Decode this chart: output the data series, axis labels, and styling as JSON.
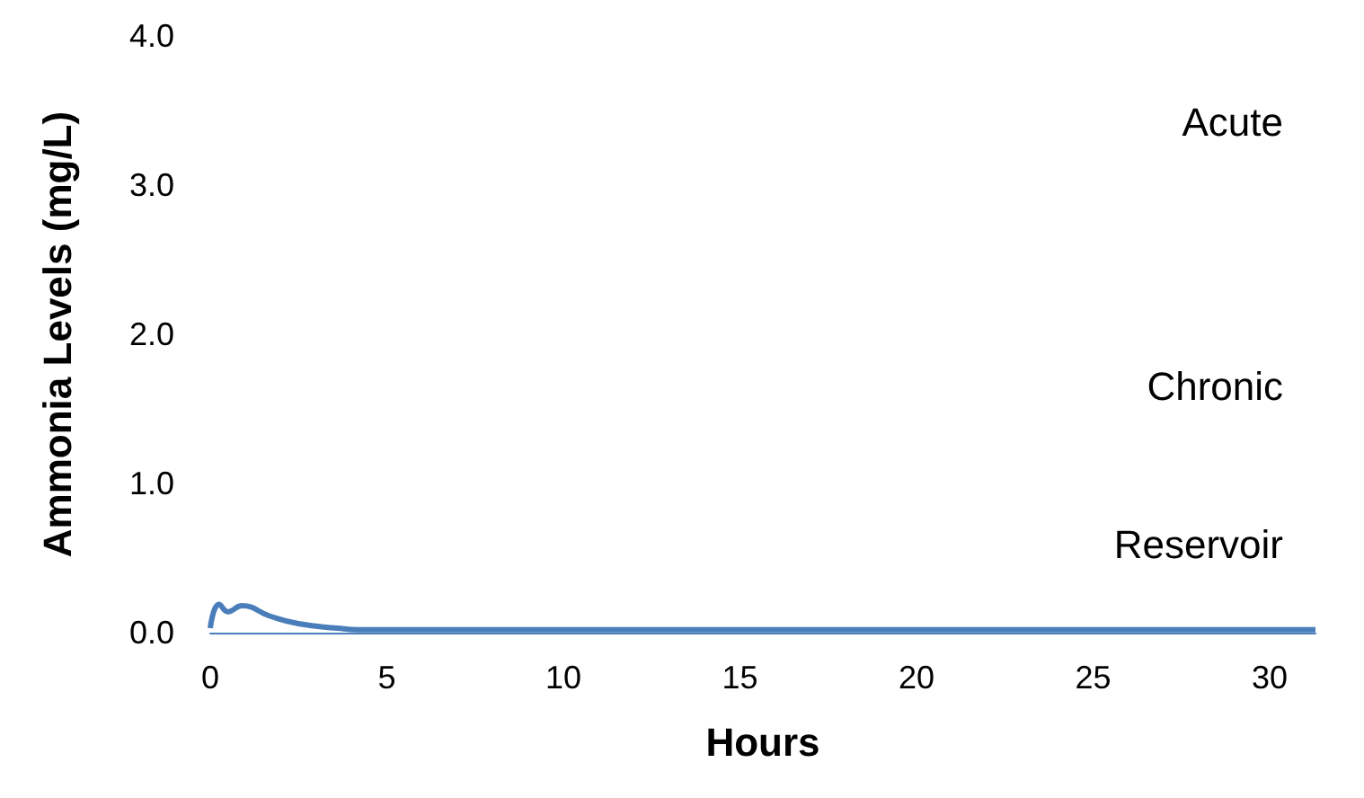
{
  "chart_data": {
    "type": "line",
    "xlabel": "Hours",
    "ylabel": "Ammonia Levels (mg/L)",
    "xlim": [
      0,
      31.3
    ],
    "xticks": [
      0,
      5,
      10,
      15,
      20,
      25,
      30
    ],
    "ylim": [
      0,
      4
    ],
    "yticks": [
      {
        "value": 0,
        "label": "0.0"
      },
      {
        "value": 1,
        "label": "1.0"
      },
      {
        "value": 2,
        "label": "2.0"
      },
      {
        "value": 3,
        "label": "3.0"
      },
      {
        "value": 4,
        "label": "4.0"
      }
    ],
    "grid": false,
    "marker": "none",
    "line_style": "solid",
    "series": [
      {
        "color": "#4a7ebb",
        "x": [
          0,
          0.25,
          0.5,
          0.9,
          1.7,
          2.5,
          3.6,
          4.2,
          10,
          20,
          31.3
        ],
        "values": [
          0.03,
          0.19,
          0.14,
          0.18,
          0.11,
          0.06,
          0.03,
          0.02,
          0.02,
          0.02,
          0.02
        ]
      }
    ],
    "annotations": [
      "Acute",
      "Chronic",
      "Reservoir"
    ]
  }
}
